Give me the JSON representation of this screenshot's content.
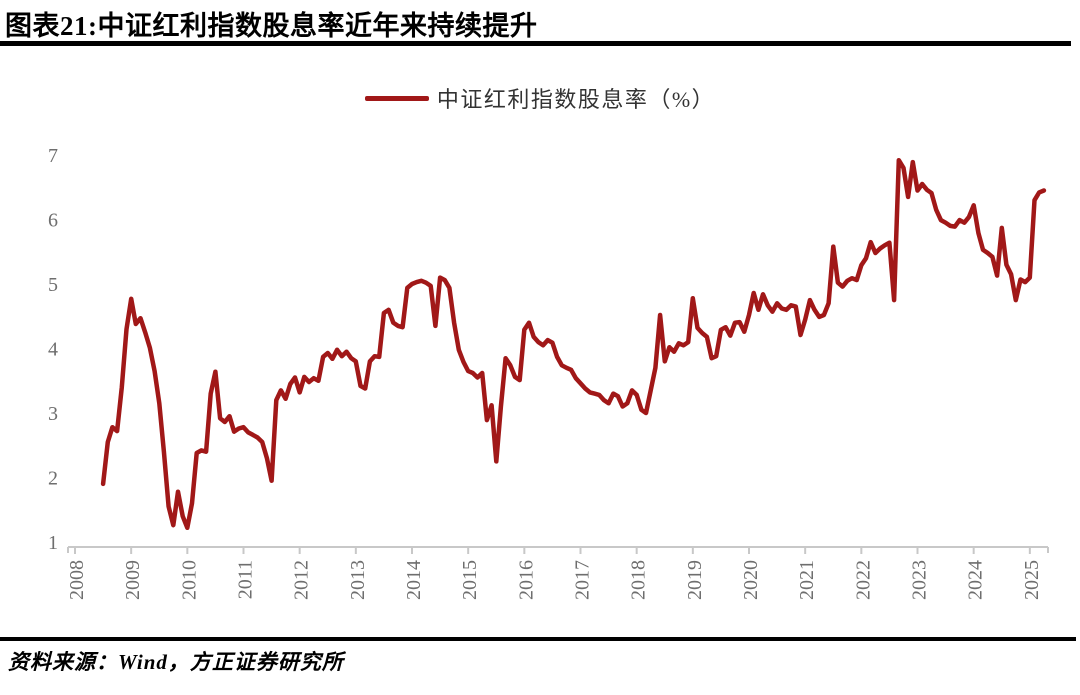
{
  "header": {
    "title": "图表21:中证红利指数股息率近年来持续提升"
  },
  "legend": {
    "label": "中证红利指数股息率（%）",
    "line_color": "#A11818"
  },
  "footer": {
    "source": "资料来源：Wind，方正证券研究所"
  },
  "chart_data": {
    "type": "line",
    "title": "中证红利指数股息率近年来持续提升",
    "xlabel": "",
    "ylabel": "",
    "ylim": [
      1,
      7
    ],
    "y_ticks": [
      7,
      6,
      5,
      4,
      3,
      2,
      1
    ],
    "x_ticks": [
      "2008",
      "2009",
      "2010",
      "2011",
      "2012",
      "2013",
      "2014",
      "2015",
      "2016",
      "2017",
      "2018",
      "2019",
      "2020",
      "2021",
      "2022",
      "2023",
      "2024",
      "2025"
    ],
    "grid": false,
    "legend_position": "top-center",
    "axis_color": "#C8C8C8",
    "tick_label_color": "#6e6e6e",
    "series": [
      {
        "name": "中证红利指数股息率（%）",
        "color": "#A11818",
        "frequency": "monthly",
        "x_start": "2008-07",
        "x_end": "2025-04",
        "values": [
          1.9,
          2.55,
          2.78,
          2.72,
          3.4,
          4.3,
          4.77,
          4.38,
          4.47,
          4.25,
          4.01,
          3.65,
          3.15,
          2.4,
          1.55,
          1.26,
          1.78,
          1.4,
          1.22,
          1.6,
          2.38,
          2.42,
          2.4,
          3.3,
          3.64,
          2.92,
          2.86,
          2.95,
          2.71,
          2.76,
          2.78,
          2.7,
          2.66,
          2.62,
          2.55,
          2.3,
          1.95,
          3.2,
          3.35,
          3.22,
          3.45,
          3.55,
          3.32,
          3.56,
          3.48,
          3.54,
          3.5,
          3.87,
          3.93,
          3.84,
          3.98,
          3.88,
          3.95,
          3.85,
          3.8,
          3.42,
          3.38,
          3.8,
          3.88,
          3.87,
          4.55,
          4.6,
          4.4,
          4.35,
          4.33,
          4.94,
          5.0,
          5.03,
          5.05,
          5.02,
          4.97,
          4.35,
          5.1,
          5.06,
          4.94,
          4.4,
          3.98,
          3.79,
          3.65,
          3.62,
          3.55,
          3.62,
          2.89,
          3.12,
          2.25,
          3.1,
          3.85,
          3.74,
          3.56,
          3.51,
          4.29,
          4.4,
          4.18,
          4.1,
          4.05,
          4.13,
          4.09,
          3.87,
          3.74,
          3.7,
          3.67,
          3.54,
          3.46,
          3.38,
          3.32,
          3.3,
          3.28,
          3.2,
          3.15,
          3.3,
          3.26,
          3.1,
          3.15,
          3.35,
          3.28,
          3.05,
          3.0,
          3.35,
          3.7,
          4.52,
          3.8,
          4.02,
          3.95,
          4.08,
          4.05,
          4.1,
          4.78,
          4.32,
          4.24,
          4.18,
          3.85,
          3.88,
          4.29,
          4.33,
          4.2,
          4.4,
          4.41,
          4.26,
          4.52,
          4.86,
          4.6,
          4.84,
          4.67,
          4.57,
          4.7,
          4.62,
          4.6,
          4.67,
          4.65,
          4.21,
          4.45,
          4.75,
          4.6,
          4.49,
          4.52,
          4.7,
          5.58,
          5.02,
          4.96,
          5.05,
          5.09,
          5.06,
          5.29,
          5.4,
          5.65,
          5.48,
          5.55,
          5.6,
          5.64,
          4.75,
          6.92,
          6.8,
          6.35,
          6.89,
          6.45,
          6.55,
          6.46,
          6.41,
          6.15,
          5.99,
          5.95,
          5.9,
          5.89,
          5.99,
          5.95,
          6.04,
          6.22,
          5.79,
          5.53,
          5.48,
          5.42,
          5.13,
          5.87,
          5.3,
          5.15,
          4.75,
          5.07,
          5.03,
          5.1,
          6.3,
          6.42,
          6.45
        ]
      }
    ]
  }
}
